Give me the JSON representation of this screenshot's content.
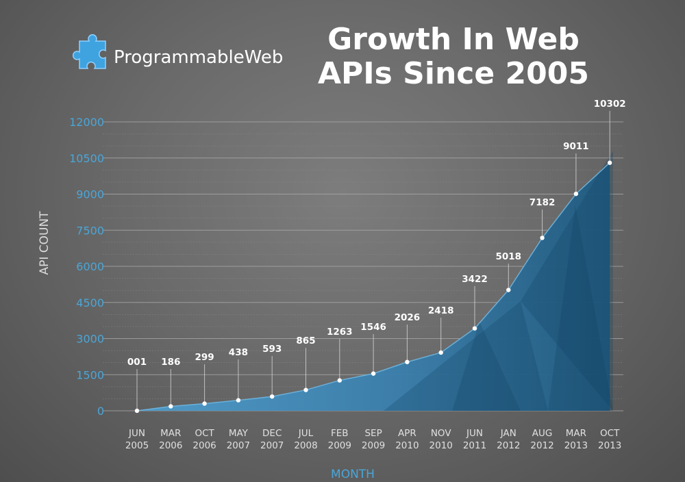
{
  "brand": {
    "name": "ProgrammableWeb",
    "logo_icon": "puzzle-piece-icon"
  },
  "chart_data": {
    "type": "area",
    "title": [
      "Growth In Web",
      "APIs Since 2005"
    ],
    "xlabel": "MONTH",
    "ylabel": "API COUNT",
    "ylim": [
      0,
      12000
    ],
    "yticks": [
      0,
      1500,
      3000,
      4500,
      6000,
      7500,
      9000,
      10500,
      12000
    ],
    "grid": true,
    "categories": [
      [
        "JUN",
        "2005"
      ],
      [
        "MAR",
        "2006"
      ],
      [
        "OCT",
        "2006"
      ],
      [
        "MAY",
        "2007"
      ],
      [
        "DEC",
        "2007"
      ],
      [
        "JUL",
        "2008"
      ],
      [
        "FEB",
        "2009"
      ],
      [
        "SEP",
        "2009"
      ],
      [
        "APR",
        "2010"
      ],
      [
        "NOV",
        "2010"
      ],
      [
        "JUN",
        "2011"
      ],
      [
        "JAN",
        "2012"
      ],
      [
        "AUG",
        "2012"
      ],
      [
        "MAR",
        "2013"
      ],
      [
        "OCT",
        "2013"
      ]
    ],
    "values": [
      1,
      186,
      299,
      438,
      593,
      865,
      1263,
      1546,
      2026,
      2418,
      3422,
      5018,
      7182,
      9011,
      10302
    ],
    "data_labels": [
      "001",
      "186",
      "299",
      "438",
      "593",
      "865",
      "1263",
      "1546",
      "2026",
      "2418",
      "3422",
      "5018",
      "7182",
      "9011",
      "10302"
    ],
    "colors": {
      "area": "#2f6f98",
      "area_light": "#4a93c0",
      "axis_text": "#4aa6d8",
      "label": "#ffffff"
    }
  }
}
